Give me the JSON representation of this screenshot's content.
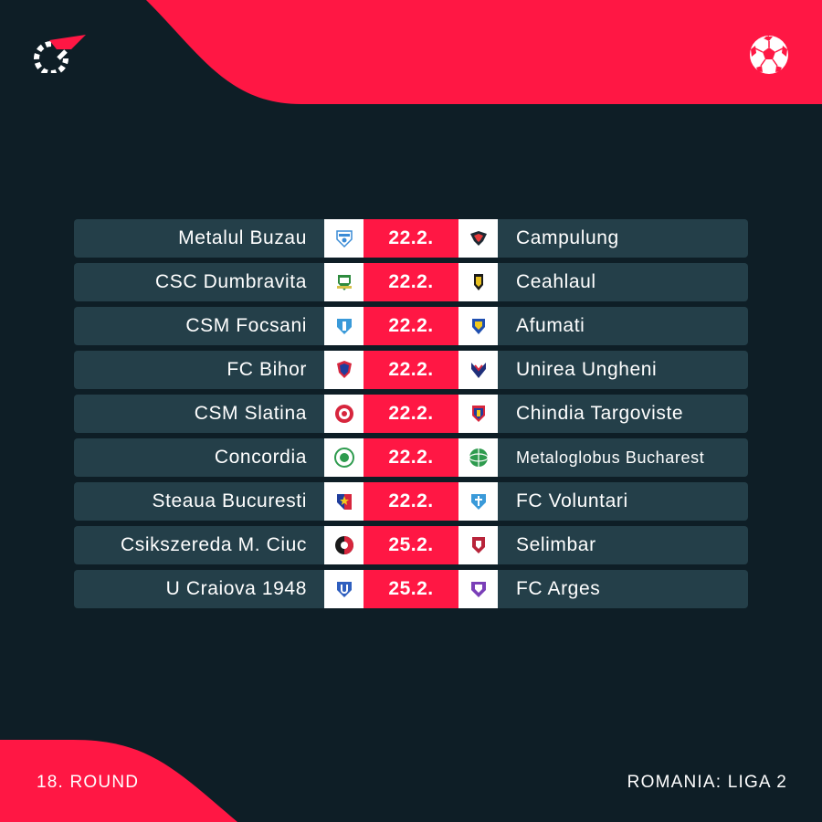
{
  "header": {
    "logo_icon": "flashscore-logo-icon",
    "sport_icon": "football-icon"
  },
  "colors": {
    "background": "#0e1e26",
    "row": "#243f49",
    "accent": "#ff1744",
    "text": "#ffffff"
  },
  "matches": [
    {
      "home": "Metalul Buzau",
      "date": "22.2.",
      "away": "Campulung"
    },
    {
      "home": "CSC Dumbravita",
      "date": "22.2.",
      "away": "Ceahlaul"
    },
    {
      "home": "CSM Focsani",
      "date": "22.2.",
      "away": "Afumati"
    },
    {
      "home": "FC Bihor",
      "date": "22.2.",
      "away": "Unirea Ungheni"
    },
    {
      "home": "CSM Slatina",
      "date": "22.2.",
      "away": "Chindia Targoviste"
    },
    {
      "home": "Concordia",
      "date": "22.2.",
      "away": "Metaloglobus Bucharest"
    },
    {
      "home": "Steaua Bucuresti",
      "date": "22.2.",
      "away": "FC Voluntari"
    },
    {
      "home": "Csikszereda M. Ciuc",
      "date": "25.2.",
      "away": "Selimbar"
    },
    {
      "home": "U Craiova 1948",
      "date": "25.2.",
      "away": "FC Arges"
    }
  ],
  "footer": {
    "round": "18. ROUND",
    "league": "ROMANIA: LIGA 2"
  }
}
